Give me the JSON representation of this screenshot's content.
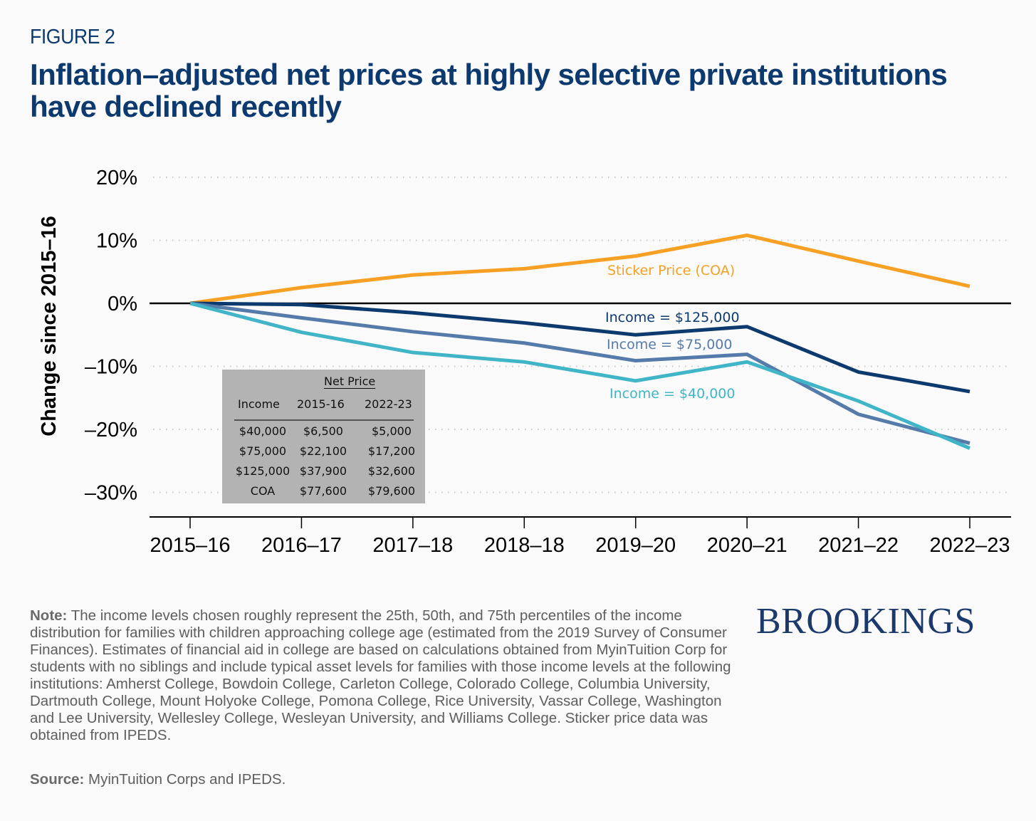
{
  "figure_label": "FIGURE 2",
  "title": "Inflation–adjusted net prices at highly selective private institutions have declined recently",
  "chart_data": {
    "type": "line",
    "title": "Inflation–adjusted net prices at highly selective private institutions have declined recently",
    "xlabel": "",
    "ylabel": "Change since 2015–16",
    "x": [
      "2015–16",
      "2016–17",
      "2017–18",
      "2018–18",
      "2019–20",
      "2020–21",
      "2021–22",
      "2022–23"
    ],
    "ylim": [
      -30,
      20
    ],
    "yticks": [
      20,
      10,
      0,
      -10,
      -20,
      -30
    ],
    "ytick_labels": [
      "20%",
      "10%",
      "0%",
      "–10%",
      "–20%",
      "–30%"
    ],
    "grid": "horizontal dotted",
    "series": [
      {
        "name": "Sticker Price (COA)",
        "color": "#f7a024",
        "values": [
          0,
          2.5,
          4.5,
          5.5,
          7.5,
          10.8,
          6.7,
          2.7
        ]
      },
      {
        "name": "Income = $125,000",
        "color": "#0d3a6e",
        "values": [
          0,
          -0.2,
          -1.5,
          -3.1,
          -5.0,
          -3.7,
          -10.9,
          -14.0
        ]
      },
      {
        "name": "Income = $75,000",
        "color": "#557bab",
        "values": [
          0,
          -2.3,
          -4.5,
          -6.3,
          -9.1,
          -8.1,
          -17.6,
          -22.2
        ]
      },
      {
        "name": "Income = $40,000",
        "color": "#41b5c8",
        "values": [
          0,
          -4.6,
          -7.8,
          -9.3,
          -12.3,
          -9.3,
          -15.5,
          -23.0
        ]
      }
    ],
    "annotations": [
      "Sticker Price (COA)",
      "Income = $125,000",
      "Income = $75,000",
      "Income = $40,000"
    ]
  },
  "table": {
    "group_header": "Net Price",
    "columns": [
      "Income",
      "2015-16",
      "2022-23"
    ],
    "rows": [
      [
        "$40,000",
        "$6,500",
        "$5,000"
      ],
      [
        "$75,000",
        "$22,100",
        "$17,200"
      ],
      [
        "$125,000",
        "$37,900",
        "$32,600"
      ],
      [
        "COA",
        "$77,600",
        "$79,600"
      ]
    ]
  },
  "note_label": "Note:",
  "note_text": " The income levels chosen roughly represent the 25th, 50th, and 75th percentiles of the income distribution for families with children approaching college age (estimated from the 2019 Survey of Consumer Finances). Estimates of financial aid in college are based on calculations obtained from MyinTuition Corp for students with no siblings and include typical asset levels for families with those income levels at the following institutions: Amherst College, Bowdoin College, Carleton College, Colorado College, Columbia University, Dartmouth College, Mount Holyoke College, Pomona College, Rice University, Vassar College, Washington and Lee University, Wellesley College, Wesleyan University, and Williams College. Sticker price data was obtained from IPEDS.",
  "source_label": "Source:",
  "source_text": " MyinTuition Corps and IPEDS.",
  "logo": "BROOKINGS"
}
